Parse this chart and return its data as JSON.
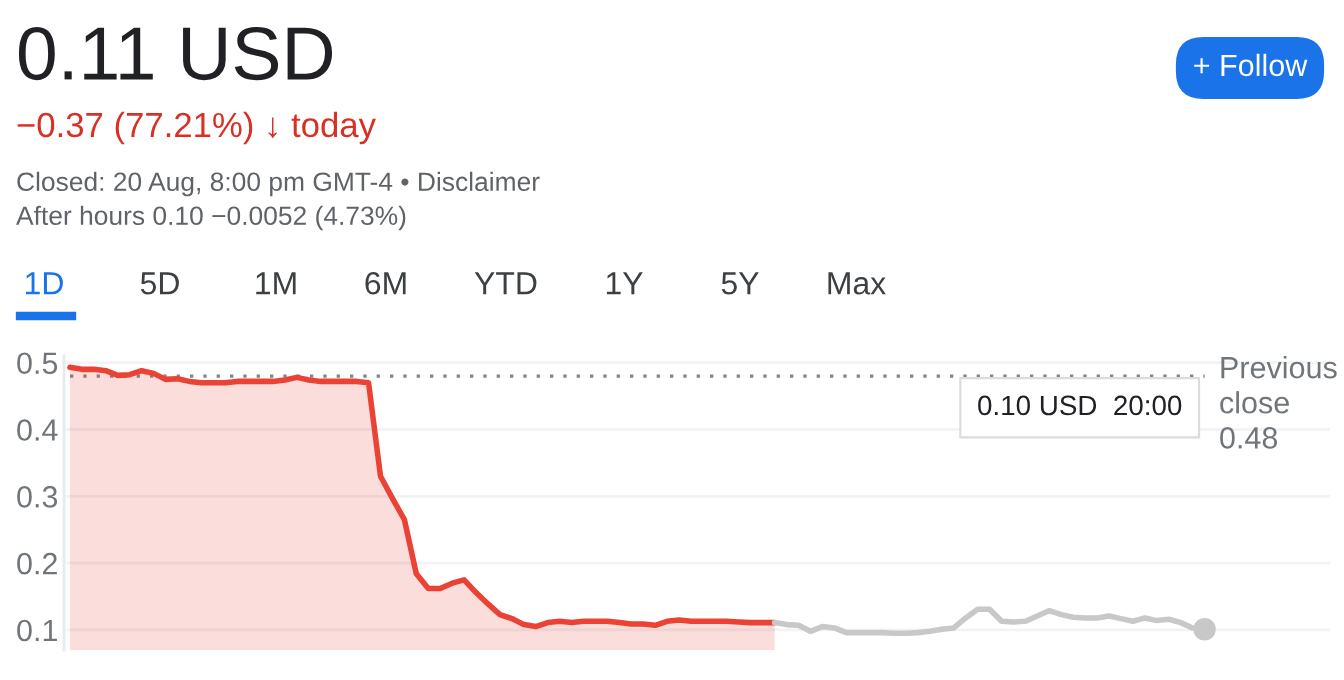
{
  "chart_data": {
    "type": "area",
    "title": "0.11 USD",
    "subtitle": "−0.37 (77.21%) ↓ today",
    "annotations": [
      "Closed: 20 Aug, 8:00 pm GMT-4 • Disclaimer",
      "After hours 0.10 −0.0052 (4.73%)",
      "1D",
      "5D",
      "1M",
      "6M",
      "YTD",
      "1Y",
      "5Y",
      "Max",
      "+ Follow",
      "0.10 USD  20:00"
    ],
    "categories": [
      null,
      null,
      null,
      null,
      null,
      null,
      null,
      null,
      null,
      null,
      null,
      null,
      null,
      null,
      null,
      null,
      null,
      null,
      null,
      null,
      null,
      null,
      null,
      null,
      null,
      null,
      null,
      null,
      null,
      null,
      null,
      null,
      null,
      null,
      null,
      null,
      null,
      null,
      null,
      null,
      null,
      null,
      null,
      null,
      null,
      null,
      null,
      null,
      null,
      null,
      null,
      null,
      null,
      null,
      null,
      null,
      null,
      null,
      null,
      null,
      null,
      null,
      null,
      null,
      null,
      null,
      null,
      null,
      null,
      null,
      null,
      null,
      null,
      null,
      null,
      null,
      null,
      null,
      null,
      null,
      null,
      null,
      null,
      null,
      null,
      null,
      null,
      null,
      null,
      null,
      null,
      null,
      null,
      null,
      null,
      null
    ],
    "series": [
      {
        "color": "#ea4335",
        "values": [
          0.493,
          0.49,
          0.49,
          0.488,
          0.481,
          0.482,
          0.488,
          0.484,
          0.475,
          0.476,
          0.472,
          0.47,
          0.47,
          0.47,
          0.472,
          0.472,
          0.472,
          0.472,
          0.474,
          0.478,
          0.474,
          0.472,
          0.472,
          0.472,
          0.472,
          0.47,
          0.33,
          0.297,
          0.265,
          0.184,
          0.162,
          0.162,
          0.17,
          0.175,
          0.156,
          0.139,
          0.123,
          0.117,
          0.108,
          0.105,
          0.111,
          0.113,
          0.111,
          0.113,
          0.113,
          0.113,
          0.111,
          0.109,
          0.109,
          0.107,
          0.113,
          0.115,
          0.113,
          0.113,
          0.113,
          0.113,
          0.112,
          0.111,
          0.111,
          0.111,
          null,
          null,
          null,
          null,
          null,
          null,
          null,
          null,
          null,
          null,
          null,
          null,
          null,
          null,
          null,
          null,
          null,
          null,
          null,
          null,
          null,
          null,
          null,
          null,
          null,
          null,
          null,
          null,
          null,
          null,
          null,
          null,
          null,
          null,
          null,
          null
        ]
      },
      {
        "type": "line",
        "color": "#c8c8c8",
        "values": [
          null,
          null,
          null,
          null,
          null,
          null,
          null,
          null,
          null,
          null,
          null,
          null,
          null,
          null,
          null,
          null,
          null,
          null,
          null,
          null,
          null,
          null,
          null,
          null,
          null,
          null,
          null,
          null,
          null,
          null,
          null,
          null,
          null,
          null,
          null,
          null,
          null,
          null,
          null,
          null,
          null,
          null,
          null,
          null,
          null,
          null,
          null,
          null,
          null,
          null,
          null,
          null,
          null,
          null,
          null,
          null,
          null,
          null,
          null,
          0.111,
          0.108,
          0.107,
          0.098,
          0.105,
          0.103,
          0.096,
          0.096,
          0.096,
          0.096,
          0.095,
          0.095,
          0.096,
          0.098,
          0.101,
          0.103,
          0.118,
          0.131,
          0.131,
          0.113,
          0.112,
          0.113,
          0.121,
          0.129,
          0.123,
          0.119,
          0.118,
          0.118,
          0.121,
          0.117,
          0.113,
          0.118,
          0.114,
          0.116,
          0.111,
          0.103,
          0.101
        ]
      }
    ],
    "ref_lines": [
      {
        "axis": "y",
        "value": 0.48,
        "label": "Previous\nclose\n0.48",
        "color": "#80868b",
        "line_style": "dotted"
      }
    ],
    "ylim": [
      0.07,
      0.51
    ],
    "yticks": [
      0.1,
      0.2,
      0.3,
      0.4,
      0.5
    ],
    "grid": "y",
    "tick_labels": "y"
  }
}
